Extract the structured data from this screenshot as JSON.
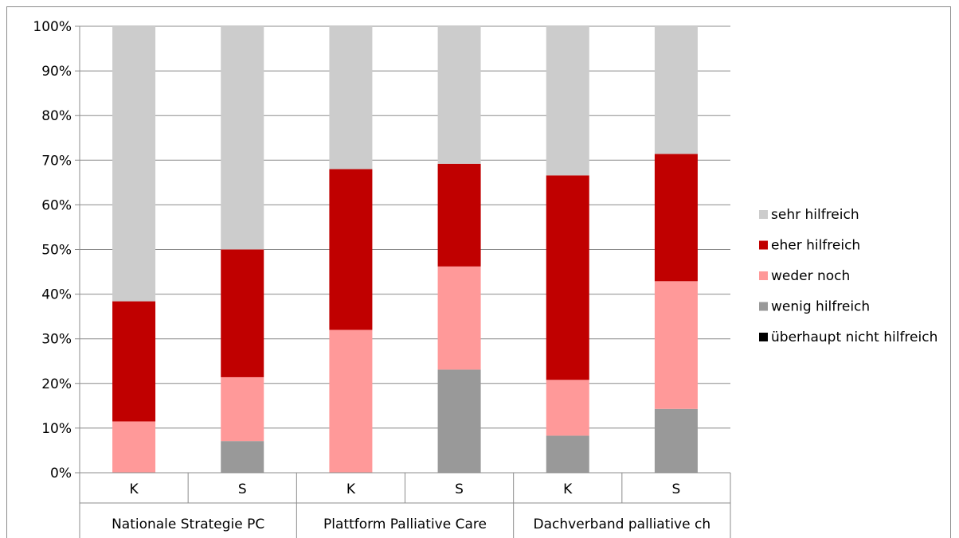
{
  "chart_data": {
    "type": "bar",
    "stacked": true,
    "percent_stacked": true,
    "categories": [
      {
        "sub": "K",
        "group": "Nationale Strategie PC"
      },
      {
        "sub": "S",
        "group": "Nationale Strategie PC"
      },
      {
        "sub": "K",
        "group": "Plattform Palliative Care"
      },
      {
        "sub": "S",
        "group": "Plattform Palliative Care"
      },
      {
        "sub": "K",
        "group": "Dachverband palliative ch"
      },
      {
        "sub": "S",
        "group": "Dachverband palliative ch"
      }
    ],
    "groups": [
      "Nationale Strategie PC",
      "Plattform Palliative Care",
      "Dachverband palliative ch"
    ],
    "series": [
      {
        "name": "überhaupt nicht hilfreich",
        "color": "#000000",
        "values": [
          0,
          0,
          0,
          0,
          0,
          0
        ]
      },
      {
        "name": "wenig hilfreich",
        "color": "#999999",
        "values": [
          0,
          7.1,
          0,
          23.1,
          8.3,
          14.3
        ]
      },
      {
        "name": "weder noch",
        "color": "#ff9999",
        "values": [
          11.5,
          14.3,
          32.0,
          23.1,
          12.5,
          28.6
        ]
      },
      {
        "name": "eher hilfreich",
        "color": "#c00000",
        "values": [
          26.9,
          28.6,
          36.0,
          23.0,
          45.8,
          28.5
        ]
      },
      {
        "name": "sehr hilfreich",
        "color": "#cccccc",
        "values": [
          61.6,
          50.0,
          32.0,
          30.8,
          33.4,
          28.6
        ]
      }
    ],
    "legend_order": [
      "sehr hilfreich",
      "eher hilfreich",
      "weder noch",
      "wenig hilfreich",
      "überhaupt nicht hilfreich"
    ],
    "ylim": [
      0,
      100
    ],
    "yticks": [
      "0%",
      "10%",
      "20%",
      "30%",
      "40%",
      "50%",
      "60%",
      "70%",
      "80%",
      "90%",
      "100%"
    ],
    "grid": true,
    "legend_position": "right",
    "title": "",
    "xlabel": "",
    "ylabel": ""
  }
}
